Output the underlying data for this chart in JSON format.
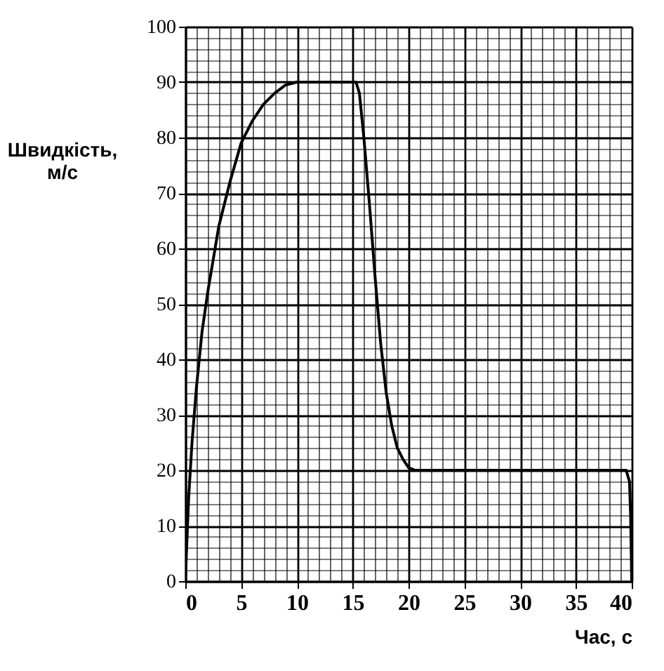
{
  "chart_data": {
    "type": "line",
    "xlabel": "Час, с",
    "ylabel": "Швидкість,\nм/с",
    "x": [
      0,
      0.3,
      0.6,
      1,
      1.5,
      2,
      2.5,
      3,
      4,
      5,
      6,
      7,
      8,
      9,
      10,
      15.3,
      15.6,
      16,
      16.5,
      17,
      17.5,
      18,
      18.5,
      19,
      19.5,
      20,
      20.6,
      39.5,
      39.8,
      39.9,
      40
    ],
    "series": [
      {
        "color": "#000000",
        "values": [
          0,
          15,
          25,
          35,
          45,
          52,
          58,
          64,
          72,
          79,
          83,
          86,
          88,
          89.5,
          90,
          90,
          88,
          80,
          68,
          55,
          43,
          34,
          28,
          24,
          22,
          20.5,
          20,
          20,
          18,
          12,
          0
        ]
      }
    ],
    "xlim": [
      0,
      40
    ],
    "ylim": [
      0,
      100
    ],
    "xticks": [
      0,
      5,
      10,
      15,
      20,
      25,
      30,
      35,
      40
    ],
    "yticks": [
      0,
      10,
      20,
      30,
      40,
      50,
      60,
      70,
      80,
      90,
      100
    ],
    "grid": true,
    "marker": "none",
    "line_style": "solid"
  }
}
